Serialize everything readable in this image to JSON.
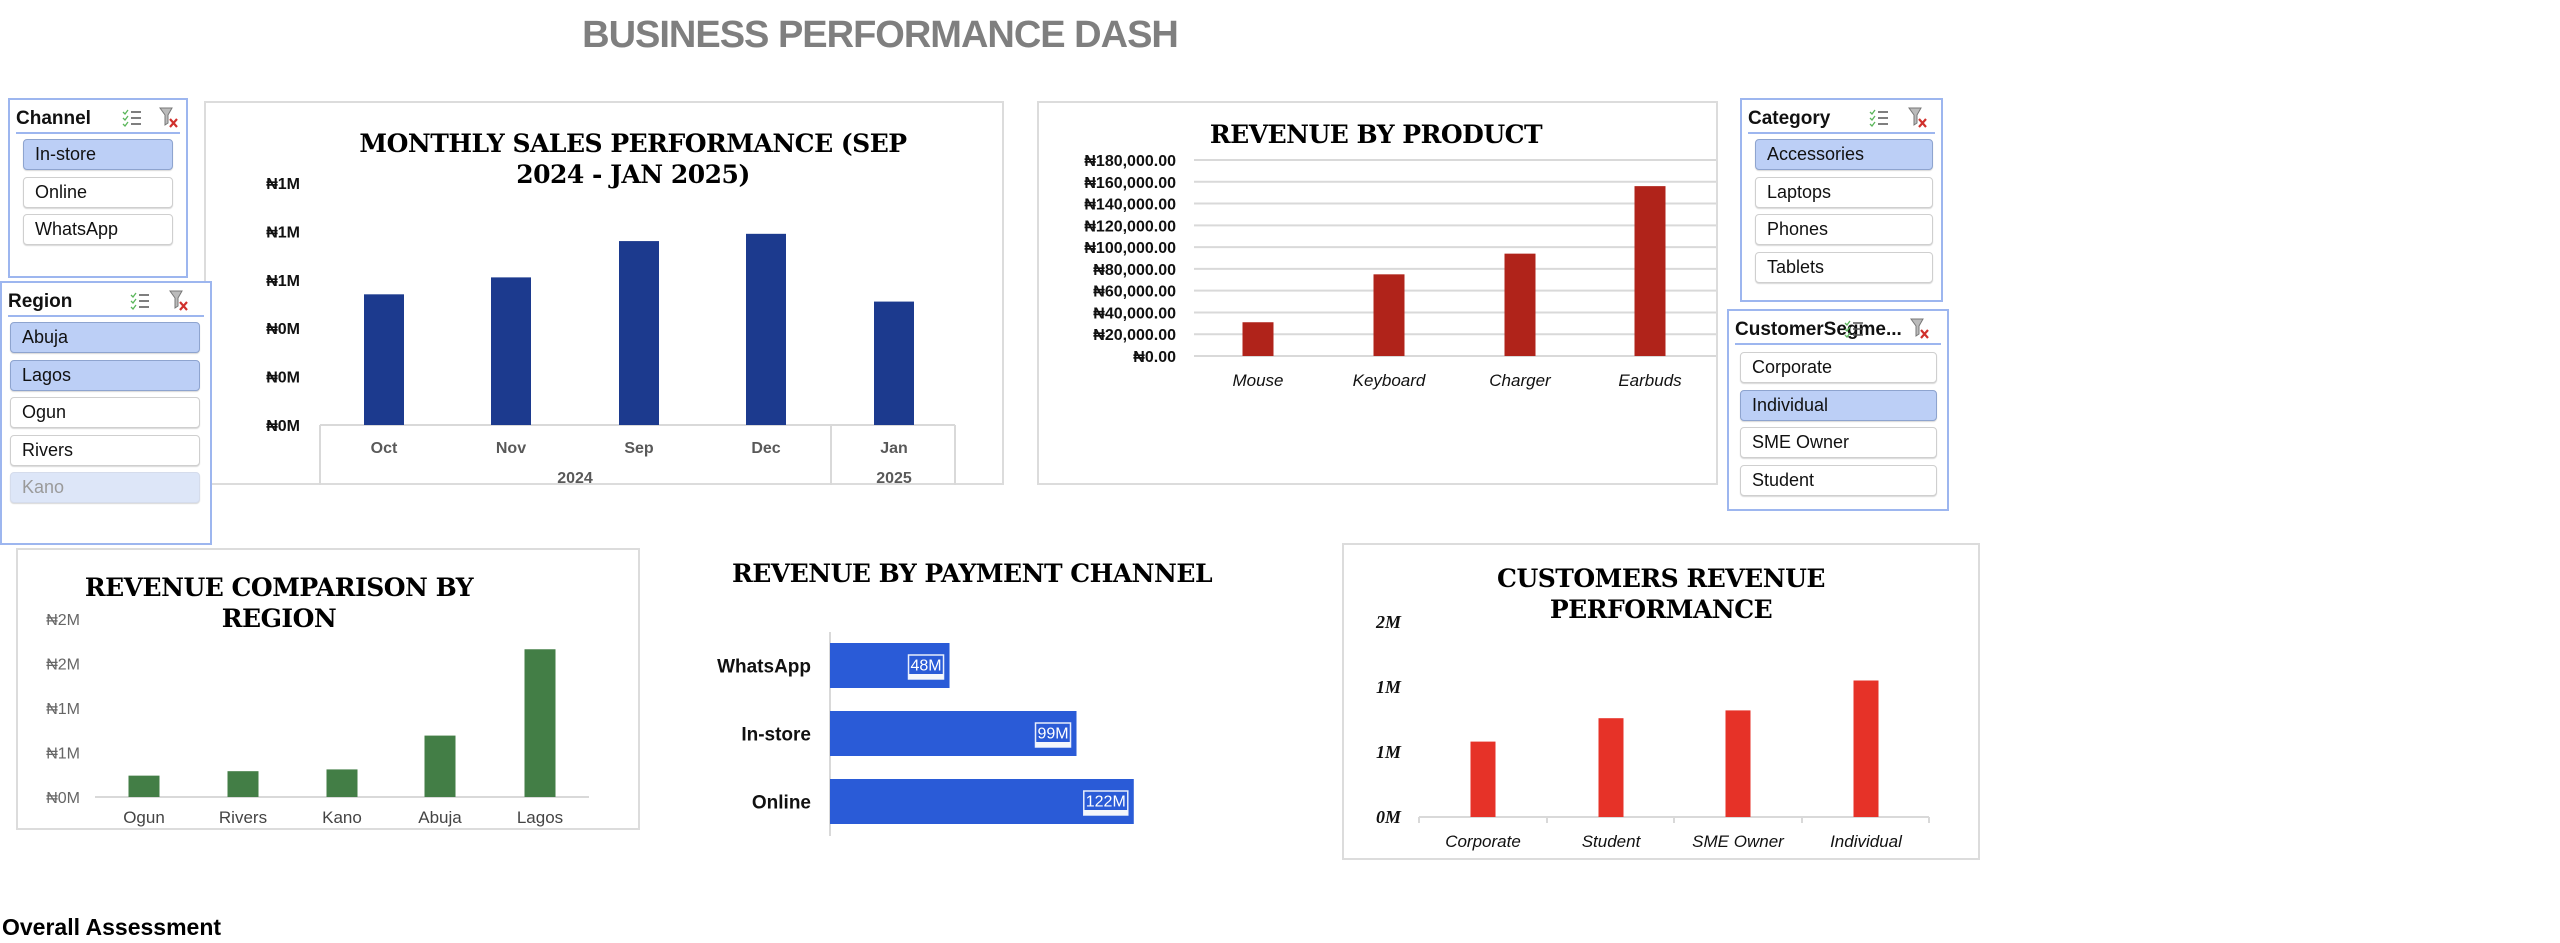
{
  "header": {
    "title": "BUSINESS PERFORMANCE DASH"
  },
  "slicers": {
    "channel": {
      "title": "Channel",
      "items": [
        {
          "label": "In-store",
          "state": "selected"
        },
        {
          "label": "Online",
          "state": "normal"
        },
        {
          "label": "WhatsApp",
          "state": "normal"
        }
      ]
    },
    "region": {
      "title": "Region",
      "items": [
        {
          "label": "Abuja",
          "state": "selected"
        },
        {
          "label": "Lagos",
          "state": "selected"
        },
        {
          "label": "Ogun",
          "state": "normal"
        },
        {
          "label": "Rivers",
          "state": "normal"
        },
        {
          "label": "Kano",
          "state": "unavailable"
        }
      ]
    },
    "category": {
      "title": "Category",
      "items": [
        {
          "label": "Accessories",
          "state": "selected"
        },
        {
          "label": "Laptops",
          "state": "normal"
        },
        {
          "label": "Phones",
          "state": "normal"
        },
        {
          "label": "Tablets",
          "state": "normal"
        }
      ]
    },
    "segment": {
      "title": "CustomerSegme...",
      "items": [
        {
          "label": "Corporate",
          "state": "normal"
        },
        {
          "label": "Individual",
          "state": "selected"
        },
        {
          "label": "SME Owner",
          "state": "normal"
        },
        {
          "label": "Student",
          "state": "normal"
        }
      ]
    }
  },
  "chart_data": [
    {
      "id": "monthly",
      "type": "bar",
      "title": "MONTHLY SALES PERFORMANCE (SEP 2024 - JAN 2025)",
      "title_lines": [
        "MONTHLY SALES PERFORMANCE (SEP",
        "2024 - JAN 2025)"
      ],
      "categories": [
        "Oct",
        "Nov",
        "Sep",
        "Dec",
        "Jan"
      ],
      "category_groups": [
        {
          "label": "2024",
          "span": 4
        },
        {
          "label": "2025",
          "span": 1
        }
      ],
      "values": [
        0.54,
        0.61,
        0.76,
        0.79,
        0.51
      ],
      "unit": "M NGN",
      "ytick_values": [
        0,
        0.2,
        0.4,
        0.6,
        0.8,
        1.0
      ],
      "ytick_labels": [
        "₦0M",
        "₦0M",
        "₦0M",
        "₦1M",
        "₦1M",
        "₦1M"
      ],
      "ylim": [
        0,
        1.0
      ],
      "color": "#1c3a8e",
      "grid": false
    },
    {
      "id": "product",
      "type": "bar",
      "title": "REVENUE BY PRODUCT",
      "title_lines": [
        "REVENUE BY PRODUCT"
      ],
      "categories": [
        "Mouse",
        "Keyboard",
        "Charger",
        "Earbuds"
      ],
      "values": [
        31000,
        75000,
        94000,
        156000
      ],
      "ytick_values": [
        0,
        20000,
        40000,
        60000,
        80000,
        100000,
        120000,
        140000,
        160000,
        180000
      ],
      "ytick_labels": [
        "₦0.00",
        "₦20,000.00",
        "₦40,000.00",
        "₦60,000.00",
        "₦80,000.00",
        "₦100,000.00",
        "₦120,000.00",
        "₦140,000.00",
        "₦160,000.00",
        "₦180,000.00"
      ],
      "ylim": [
        0,
        180000
      ],
      "color": "#b0231a",
      "grid": true
    },
    {
      "id": "region",
      "type": "bar",
      "title": "REVENUE COMPARISON BY REGION",
      "title_lines": [
        "REVENUE COMPARISON BY",
        "REGION"
      ],
      "categories": [
        "Ogun",
        "Rivers",
        "Kano",
        "Abuja",
        "Lagos"
      ],
      "values": [
        0.24,
        0.29,
        0.31,
        0.69,
        1.66
      ],
      "unit": "M NGN",
      "ytick_values": [
        0,
        0.5,
        1.0,
        1.5,
        2.0
      ],
      "ytick_labels": [
        "₦0M",
        "₦1M",
        "₦1M",
        "₦2M",
        "₦2M"
      ],
      "ylim": [
        0,
        2.0
      ],
      "color": "#437e46",
      "grid": false
    },
    {
      "id": "payment",
      "type": "bar",
      "orientation": "horizontal",
      "title": "REVENUE BY PAYMENT CHANNEL",
      "title_lines": [
        "REVENUE BY PAYMENT CHANNEL"
      ],
      "categories": [
        "WhatsApp",
        "In-store",
        "Online"
      ],
      "values": [
        48,
        99,
        122
      ],
      "data_labels": [
        "48M",
        "99M",
        "122M"
      ],
      "unit": "M",
      "color": "#2a5bd7",
      "grid": false
    },
    {
      "id": "customers",
      "type": "bar",
      "title": "CUSTOMERS REVENUE PERFORMANCE",
      "title_lines": [
        "CUSTOMERS REVENUE",
        "PERFORMANCE"
      ],
      "categories": [
        "Corporate",
        "Student",
        "SME Owner",
        "Individual"
      ],
      "values": [
        0.58,
        0.76,
        0.82,
        1.05
      ],
      "unit": "M",
      "ytick_values": [
        0,
        0.5,
        1.0,
        1.5
      ],
      "ytick_labels": [
        "0M",
        "1M",
        "1M",
        "2M"
      ],
      "ylim": [
        0,
        1.5
      ],
      "color": "#e63228",
      "grid": false
    }
  ],
  "footer": {
    "overall_assessment": "Overall Assessment"
  }
}
